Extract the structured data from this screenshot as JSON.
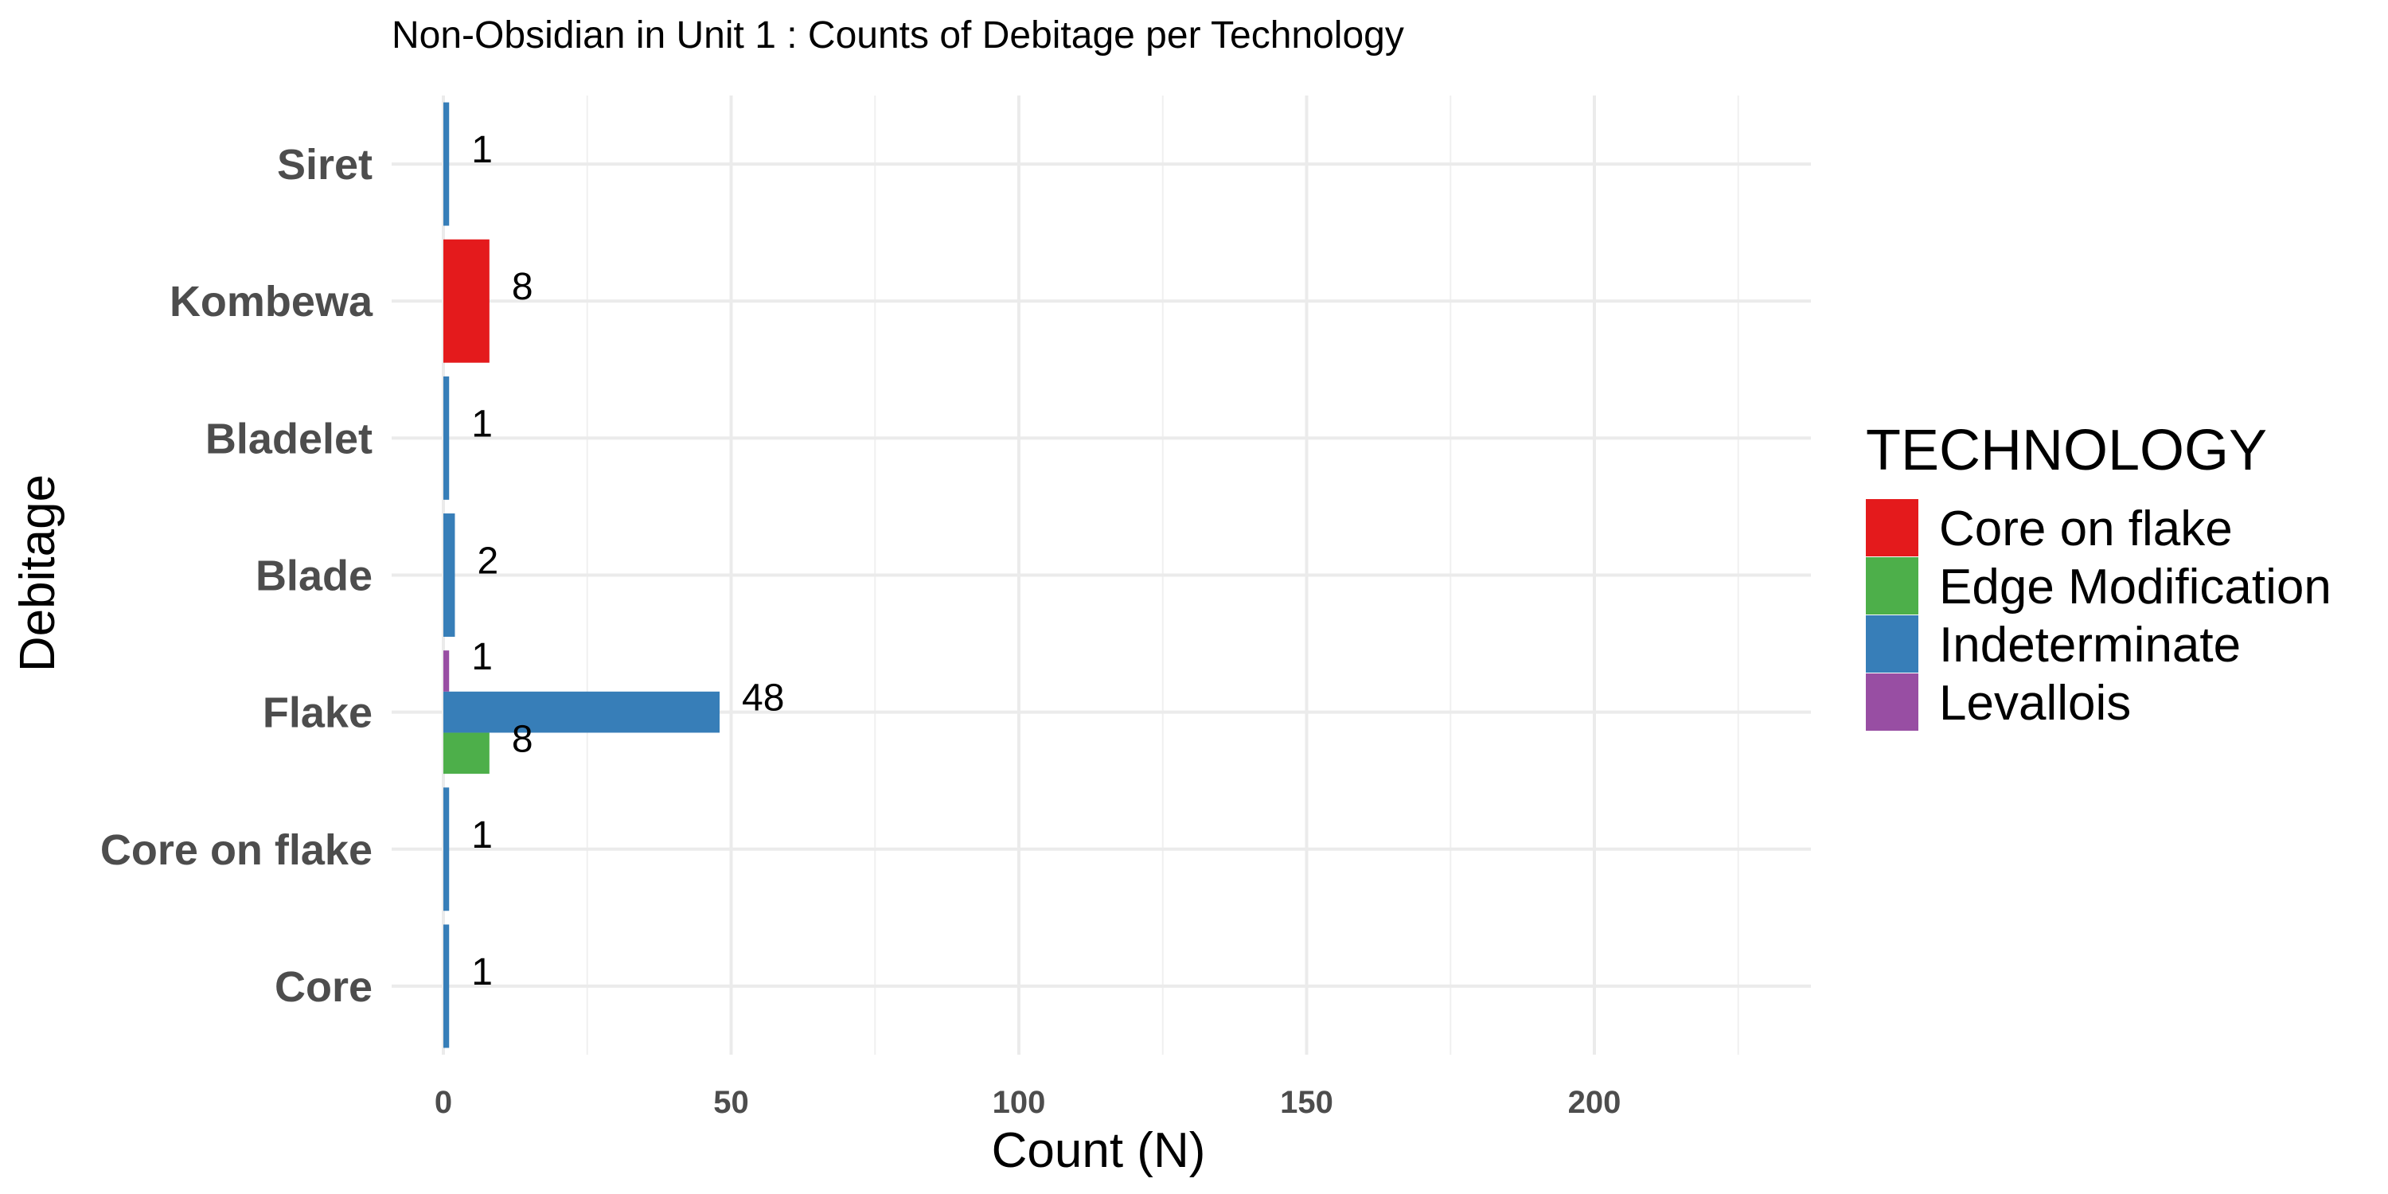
{
  "chart_data": {
    "type": "bar",
    "orientation": "horizontal",
    "title": "Non-Obsidian in Unit 1 : Counts of Debitage per Technology",
    "xlabel": "Count (N)",
    "ylabel": "Debitage",
    "categories": [
      "Siret",
      "Kombewa",
      "Bladelet",
      "Blade",
      "Flake",
      "Core on flake",
      "Core"
    ],
    "xlim": [
      0,
      240
    ],
    "xticks": [
      0,
      50,
      100,
      150,
      200
    ],
    "grid": true,
    "legend": {
      "title": "TECHNOLOGY",
      "position": "right",
      "entries": [
        "Core on flake",
        "Edge Modification",
        "Indeterminate",
        "Levallois"
      ]
    },
    "colors": {
      "Core on flake": "#e41a1c",
      "Edge Modification": "#4daf4a",
      "Indeterminate": "#377eb8",
      "Levallois": "#984ea3"
    },
    "series": [
      {
        "name": "Core on flake",
        "values": [
          0,
          8,
          0,
          0,
          0,
          0,
          0
        ]
      },
      {
        "name": "Edge Modification",
        "values": [
          0,
          0,
          0,
          0,
          8,
          0,
          0
        ]
      },
      {
        "name": "Indeterminate",
        "values": [
          1,
          0,
          1,
          2,
          48,
          1,
          1
        ]
      },
      {
        "name": "Levallois",
        "values": [
          0,
          0,
          0,
          0,
          1,
          0,
          0
        ]
      }
    ]
  }
}
